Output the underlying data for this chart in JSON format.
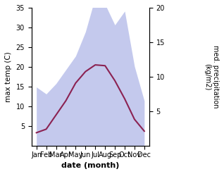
{
  "months": [
    "Jan",
    "Feb",
    "Mar",
    "Apr",
    "May",
    "Jun",
    "Jul",
    "Aug",
    "Sep",
    "Oct",
    "Nov",
    "Dec"
  ],
  "temp_max": [
    3.3,
    4.2,
    7.8,
    11.4,
    15.9,
    18.8,
    20.5,
    20.3,
    16.5,
    11.9,
    6.7,
    3.7
  ],
  "precip": [
    8.5,
    7.5,
    9.0,
    11.0,
    13.0,
    16.5,
    21.5,
    20.5,
    17.5,
    19.5,
    11.5,
    6.5
  ],
  "ylabel_left": "max temp (C)",
  "ylabel_right": "med. precipitation\n(kg/m2)",
  "xlabel": "date (month)",
  "ylim_left": [
    0,
    35
  ],
  "ylim_right": [
    0,
    20
  ],
  "yticks_left": [
    5,
    10,
    15,
    20,
    25,
    30,
    35
  ],
  "yticks_right": [
    5,
    10,
    15,
    20
  ],
  "area_color": "#b0b8e8",
  "area_alpha": 0.75,
  "line_color": "#8b2252",
  "bg_color": "#ffffff",
  "precip_to_temp_scale": 1.75
}
